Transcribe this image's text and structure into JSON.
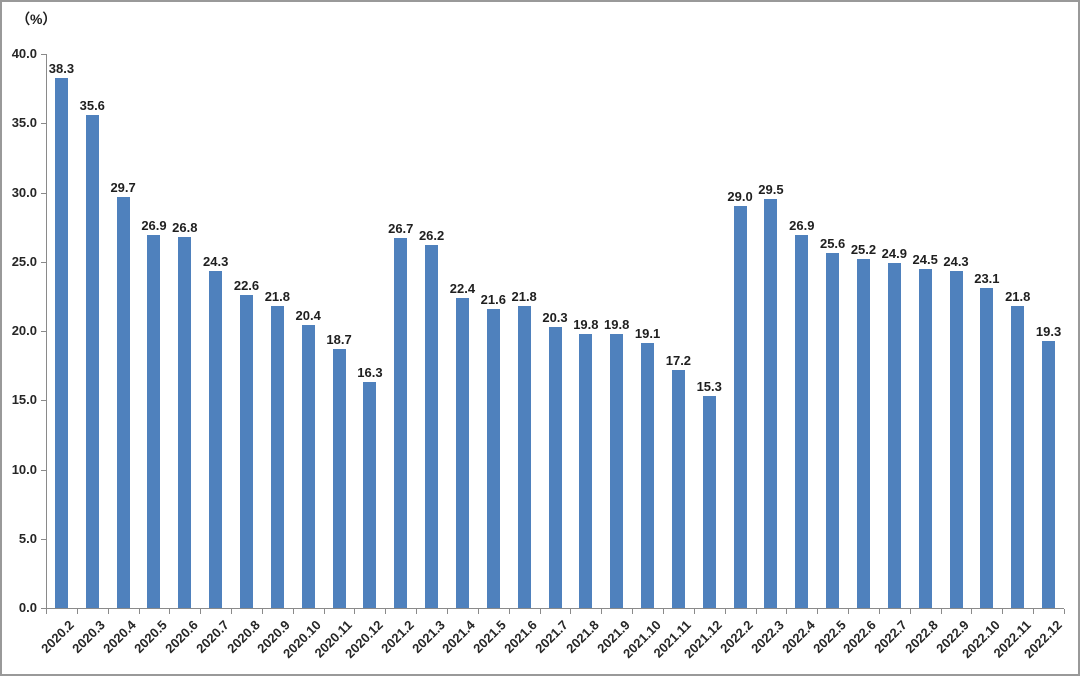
{
  "chart_data": {
    "type": "bar",
    "title": "",
    "unit_label": "（%）",
    "categories": [
      "2020.2",
      "2020.3",
      "2020.4",
      "2020.5",
      "2020.6",
      "2020.7",
      "2020.8",
      "2020.9",
      "2020.10",
      "2020.11",
      "2020.12",
      "2021.2",
      "2021.3",
      "2021.4",
      "2021.5",
      "2021.6",
      "2021.7",
      "2021.8",
      "2021.9",
      "2021.10",
      "2021.11",
      "2021.12",
      "2022.2",
      "2022.3",
      "2022.4",
      "2022.5",
      "2022.6",
      "2022.7",
      "2022.8",
      "2022.9",
      "2022.10",
      "2022.11",
      "2022.12"
    ],
    "values": [
      38.3,
      35.6,
      29.7,
      26.9,
      26.8,
      24.3,
      22.6,
      21.8,
      20.4,
      18.7,
      16.3,
      26.7,
      26.2,
      22.4,
      21.6,
      21.8,
      20.3,
      19.8,
      19.8,
      19.1,
      17.2,
      15.3,
      29.0,
      29.5,
      26.9,
      25.6,
      25.2,
      24.9,
      24.5,
      24.3,
      23.1,
      21.8,
      19.3
    ],
    "ylim": [
      0,
      40
    ],
    "ytick_step": 5,
    "ytick_labels": [
      "0.0",
      "5.0",
      "10.0",
      "15.0",
      "20.0",
      "25.0",
      "30.0",
      "35.0",
      "40.0"
    ],
    "xlabel": "",
    "ylabel": "",
    "legend": "none",
    "grid": "off",
    "data_labels": "above-bars",
    "bar_color": "#4F81BD",
    "axis_color": "#8a8a8a",
    "text_color": "#262626"
  }
}
